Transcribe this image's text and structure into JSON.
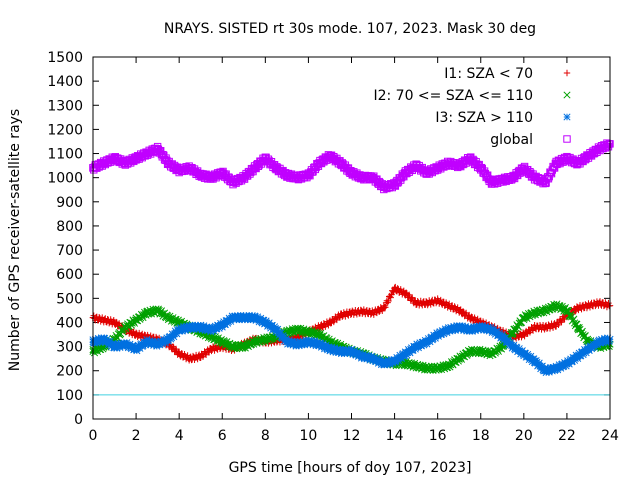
{
  "chart_data": {
    "type": "scatter",
    "title": "NRAYS. SISTED rt 30s mode. 107, 2023. Mask 30 deg",
    "xlabel": "GPS time [hours of doy 107, 2023]",
    "ylabel": "Number of GPS receiver-satellite rays",
    "xlim": [
      0,
      24
    ],
    "ylim": [
      0,
      1500
    ],
    "xticks": [
      "0",
      "2",
      "4",
      "6",
      "8",
      "10",
      "12",
      "14",
      "16",
      "18",
      "20",
      "22",
      "24"
    ],
    "yticks": [
      "0",
      "100",
      "200",
      "300",
      "400",
      "500",
      "600",
      "700",
      "800",
      "900",
      "1000",
      "1100",
      "1200",
      "1300",
      "1400",
      "1500"
    ],
    "reference_line": {
      "y": 100,
      "color": "#40d0e0"
    },
    "legend_position": "top-right",
    "series": [
      {
        "name": "I1: SZA < 70",
        "marker": "+",
        "color": "#e00000",
        "x": [
          0,
          0.5,
          1,
          1.5,
          2,
          2.5,
          3,
          3.5,
          4,
          4.5,
          5,
          5.5,
          6,
          6.5,
          7,
          7.5,
          8,
          8.5,
          9,
          9.5,
          10,
          10.5,
          11,
          11.5,
          12,
          12.5,
          13,
          13.5,
          14,
          14.5,
          15,
          15.5,
          16,
          16.5,
          17,
          17.5,
          18,
          18.5,
          19,
          19.5,
          20,
          20.5,
          21,
          21.5,
          22,
          22.5,
          23,
          23.5,
          24
        ],
        "y": [
          420,
          410,
          400,
          370,
          350,
          340,
          330,
          310,
          270,
          250,
          260,
          290,
          300,
          290,
          310,
          330,
          320,
          325,
          330,
          340,
          360,
          380,
          400,
          430,
          440,
          445,
          440,
          460,
          540,
          520,
          480,
          480,
          490,
          470,
          450,
          420,
          400,
          380,
          360,
          340,
          350,
          380,
          380,
          390,
          430,
          460,
          470,
          480,
          470
        ]
      },
      {
        "name": "I2: 70 <= SZA <= 110",
        "marker": "x",
        "color": "#00a000",
        "x": [
          0,
          0.5,
          1,
          1.5,
          2,
          2.5,
          3,
          3.5,
          4,
          4.5,
          5,
          5.5,
          6,
          6.5,
          7,
          7.5,
          8,
          8.5,
          9,
          9.5,
          10,
          10.5,
          11,
          11.5,
          12,
          12.5,
          13,
          13.5,
          14,
          14.5,
          15,
          15.5,
          16,
          16.5,
          17,
          17.5,
          18,
          18.5,
          19,
          19.5,
          20,
          20.5,
          21,
          21.5,
          22,
          22.5,
          23,
          23.5,
          24
        ],
        "y": [
          280,
          300,
          330,
          380,
          410,
          440,
          450,
          420,
          400,
          380,
          360,
          340,
          320,
          300,
          300,
          320,
          330,
          340,
          360,
          370,
          360,
          350,
          320,
          300,
          280,
          270,
          250,
          240,
          230,
          230,
          220,
          210,
          210,
          220,
          250,
          280,
          280,
          270,
          300,
          360,
          420,
          440,
          450,
          470,
          450,
          380,
          320,
          300,
          310
        ]
      },
      {
        "name": "I3: SZA > 110",
        "marker": "*",
        "color": "#0070e0",
        "x": [
          0,
          0.5,
          1,
          1.5,
          2,
          2.5,
          3,
          3.5,
          4,
          4.5,
          5,
          5.5,
          6,
          6.5,
          7,
          7.5,
          8,
          8.5,
          9,
          9.5,
          10,
          10.5,
          11,
          11.5,
          12,
          12.5,
          13,
          13.5,
          14,
          14.5,
          15,
          15.5,
          16,
          16.5,
          17,
          17.5,
          18,
          18.5,
          19,
          19.5,
          20,
          20.5,
          21,
          21.5,
          22,
          22.5,
          23,
          23.5,
          24
        ],
        "y": [
          320,
          330,
          300,
          310,
          290,
          320,
          310,
          330,
          370,
          380,
          380,
          370,
          390,
          420,
          420,
          420,
          400,
          370,
          320,
          310,
          320,
          310,
          290,
          280,
          280,
          260,
          250,
          230,
          240,
          270,
          300,
          320,
          350,
          370,
          380,
          370,
          380,
          370,
          340,
          300,
          270,
          240,
          200,
          210,
          230,
          260,
          290,
          320,
          330
        ]
      },
      {
        "name": "global",
        "marker": "square",
        "color": "#c000ff",
        "x": [
          0,
          0.5,
          1,
          1.5,
          2,
          2.5,
          3,
          3.5,
          4,
          4.5,
          5,
          5.5,
          6,
          6.5,
          7,
          7.5,
          8,
          8.5,
          9,
          9.5,
          10,
          10.5,
          11,
          11.5,
          12,
          12.5,
          13,
          13.5,
          14,
          14.5,
          15,
          15.5,
          16,
          16.5,
          17,
          17.5,
          18,
          18.5,
          19,
          19.5,
          20,
          20.5,
          21,
          21.5,
          22,
          22.5,
          23,
          23.5,
          24
        ],
        "y": [
          1040,
          1060,
          1080,
          1060,
          1080,
          1100,
          1120,
          1060,
          1030,
          1040,
          1010,
          1000,
          1020,
          980,
          1000,
          1040,
          1080,
          1040,
          1010,
          1000,
          1010,
          1060,
          1090,
          1060,
          1020,
          1000,
          1000,
          960,
          970,
          1020,
          1050,
          1020,
          1040,
          1060,
          1050,
          1080,
          1040,
          980,
          990,
          1000,
          1040,
          1000,
          980,
          1060,
          1080,
          1060,
          1090,
          1120,
          1140
        ]
      }
    ]
  }
}
